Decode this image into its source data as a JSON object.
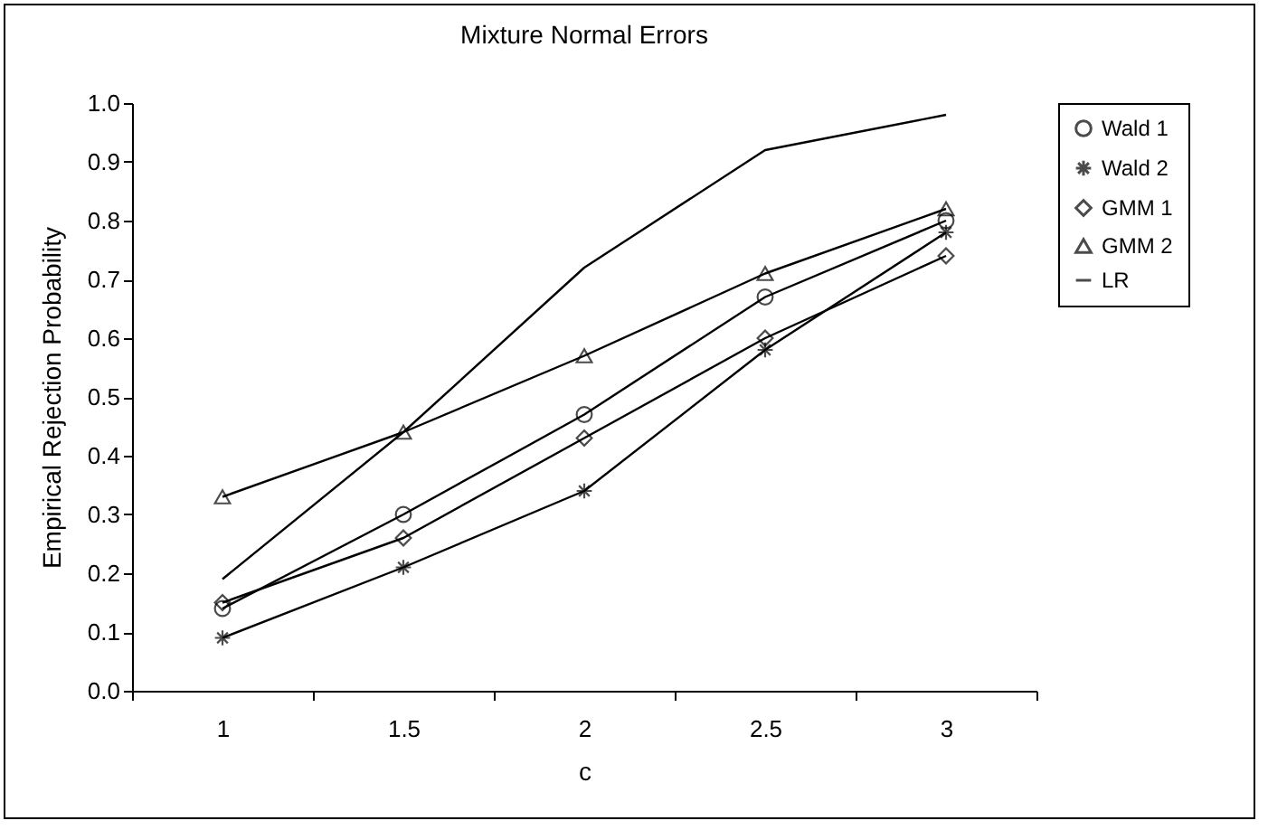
{
  "chart_data": {
    "type": "line",
    "title": "Mixture Normal Errors",
    "xlabel": "c",
    "ylabel": "Empirical Rejection Probability",
    "categories": [
      "1",
      "1.5",
      "2",
      "2.5",
      "3"
    ],
    "series": [
      {
        "name": "Wald 1",
        "color": "#000000",
        "marker": "circle",
        "values": [
          0.14,
          0.3,
          0.47,
          0.67,
          0.8
        ]
      },
      {
        "name": "Wald 2",
        "color": "#000000",
        "marker": "cross",
        "values": [
          0.09,
          0.21,
          0.34,
          0.58,
          0.78
        ]
      },
      {
        "name": "GMM 1",
        "color": "#000000",
        "marker": "diamond",
        "values": [
          0.15,
          0.26,
          0.43,
          0.6,
          0.74
        ]
      },
      {
        "name": "GMM 2",
        "color": "#000000",
        "marker": "triangle",
        "values": [
          0.33,
          0.44,
          0.57,
          0.71,
          0.82
        ]
      },
      {
        "name": "LR",
        "color": "#000000",
        "marker": "none",
        "values": [
          0.19,
          0.44,
          0.72,
          0.92,
          0.98
        ]
      }
    ],
    "ylim": [
      0,
      1
    ],
    "yticks": [
      {
        "value": 0,
        "label": "0.0"
      },
      0.1,
      0.2,
      0.3,
      0.4,
      0.5,
      0.6,
      0.7,
      0.8,
      0.9,
      {
        "value": 1,
        "label": "1.0"
      }
    ],
    "grid": false,
    "legend": "right",
    "line_style": "solid"
  }
}
